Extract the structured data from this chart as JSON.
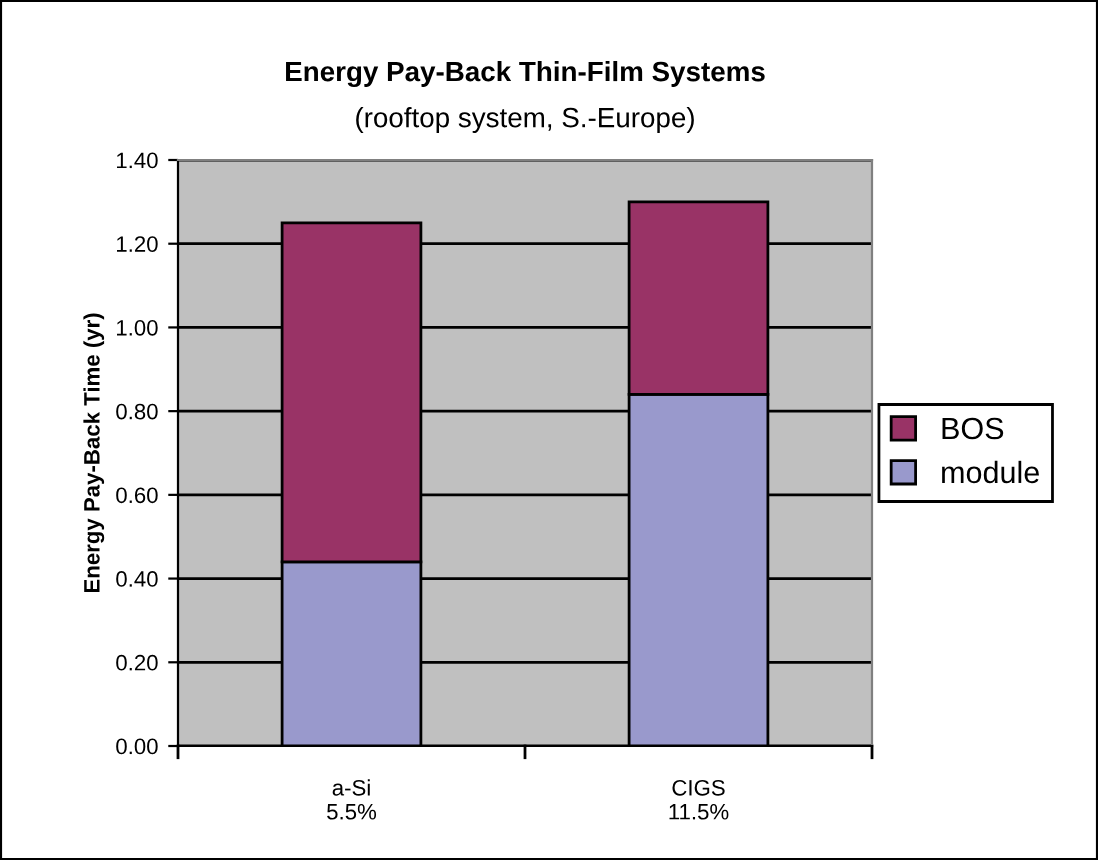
{
  "chart_data": {
    "type": "bar",
    "stacked": true,
    "title": "Energy Pay-Back Thin-Film Systems",
    "subtitle": "(rooftop system, S.-Europe)",
    "ylabel": "Energy Pay-Back Time (yr)",
    "categories": [
      "a-Si\n5.5%",
      "CIGS\n11.5%"
    ],
    "series": [
      {
        "name": "module",
        "color": "#9999cc",
        "values": [
          0.44,
          0.84
        ]
      },
      {
        "name": "BOS",
        "color": "#993366",
        "values": [
          0.81,
          0.46
        ]
      }
    ],
    "ylim": [
      0,
      1.4
    ],
    "yticks": [
      {
        "value": 0,
        "label": "0.00"
      },
      {
        "value": 0.2,
        "label": "0.20"
      },
      {
        "value": 0.4,
        "label": "0.40"
      },
      {
        "value": 0.6,
        "label": "0.60"
      },
      {
        "value": 0.8,
        "label": "0.80"
      },
      {
        "value": 1.0,
        "label": "1.00"
      },
      {
        "value": 1.2,
        "label": "1.20"
      },
      {
        "value": 1.4,
        "label": "1.40"
      }
    ],
    "grid": "y",
    "legend": "right"
  }
}
